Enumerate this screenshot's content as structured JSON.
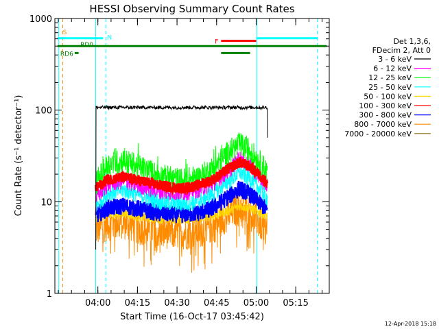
{
  "chart_data": {
    "type": "line",
    "title": "HESSI Observing Summary Count Rates",
    "xlabel": "Start Time (16-Oct-17 03:45:42)",
    "ylabel": "Count Rate (s⁻¹ detector⁻¹)",
    "y_scale": "log",
    "ylim": [
      1,
      1000
    ],
    "x_unit": "minutes after 03:45:42",
    "xlim": [
      -2,
      102
    ],
    "x_tick_labels": [
      "04:00",
      "04:15",
      "04:30",
      "04:45",
      "05:00",
      "05:15"
    ],
    "x_tick_values": [
      14.3,
      29.3,
      44.3,
      59.3,
      74.3,
      89.3
    ],
    "y_tick_labels": [
      "1",
      "10",
      "100",
      "1000"
    ],
    "y_tick_values": [
      1,
      10,
      100,
      1000
    ],
    "legend_header": [
      "Det 1,3,6,",
      "FDecim 2, Att 0"
    ],
    "legend_position": "right",
    "series": [
      {
        "name": "3 - 6 keV",
        "color": "#000000",
        "x": [
          13.5,
          13.6,
          20,
          40,
          60,
          75,
          78.5,
          78.6
        ],
        "y": [
          3,
          108,
          107,
          106,
          108,
          108,
          107,
          50
        ]
      },
      {
        "name": "6 - 12 keV",
        "color": "#ff00ff",
        "x": [
          13.5,
          18,
          24,
          30,
          38,
          46,
          52,
          58,
          64,
          68,
          72,
          76,
          78.5
        ],
        "y": [
          11,
          15.5,
          17,
          15,
          13,
          12.5,
          13.5,
          16,
          22,
          30,
          25,
          18,
          15
        ]
      },
      {
        "name": "12 - 25 keV",
        "color": "#00ff00",
        "x": [
          13.5,
          18,
          24,
          30,
          38,
          46,
          52,
          58,
          64,
          68,
          72,
          76,
          78.5
        ],
        "y": [
          16,
          25,
          28,
          24,
          19,
          17,
          18,
          23,
          35,
          42,
          36,
          26,
          21
        ]
      },
      {
        "name": "25 - 50 keV",
        "color": "#00ffff",
        "x": [
          13.5,
          18,
          24,
          30,
          38,
          46,
          52,
          58,
          64,
          68,
          72,
          76,
          78.5
        ],
        "y": [
          9,
          12.5,
          13.5,
          12,
          10,
          9.5,
          10,
          12.5,
          17,
          21,
          18,
          13.5,
          11
        ]
      },
      {
        "name": "50 - 100 keV",
        "color": "#ffd700",
        "x": [
          13.5,
          18,
          24,
          30,
          38,
          46,
          52,
          58,
          64,
          68,
          72,
          76,
          78.5
        ],
        "y": [
          6.5,
          7,
          7.5,
          6.8,
          6.5,
          6.4,
          6.5,
          7,
          8,
          9,
          8.5,
          7.5,
          7
        ]
      },
      {
        "name": "100 - 300 keV",
        "color": "#ff0000",
        "x": [
          13.5,
          18,
          24,
          30,
          38,
          46,
          52,
          58,
          64,
          68,
          72,
          76,
          78.5
        ],
        "y": [
          14,
          17.5,
          18.5,
          17,
          15,
          14,
          15,
          17.5,
          23,
          27,
          24,
          19,
          16
        ]
      },
      {
        "name": "300 - 800 keV",
        "color": "#0000ff",
        "x": [
          13.5,
          18,
          24,
          30,
          38,
          46,
          52,
          58,
          64,
          68,
          72,
          76,
          78.5
        ],
        "y": [
          7,
          8.5,
          9,
          8.3,
          7.5,
          7.2,
          7.5,
          8.5,
          11.5,
          14,
          12,
          9.5,
          8
        ]
      },
      {
        "name": "800 - 7000 keV",
        "color": "#ff8c00",
        "x": [
          13.5,
          18,
          24,
          30,
          38,
          46,
          52,
          58,
          64,
          68,
          72,
          76,
          78.5
        ],
        "y": [
          5,
          5.8,
          6,
          5.3,
          4.8,
          4.6,
          4.8,
          5.5,
          7.5,
          9,
          7.5,
          5.8,
          5
        ]
      },
      {
        "name": "7000 - 20000 keV",
        "color": "#8b6b10",
        "x": [],
        "y": []
      }
    ],
    "annotations": [
      {
        "label": "S",
        "color": "#ff8c00",
        "x_start": 0.5,
        "x_end": 0.5,
        "y": 710
      },
      {
        "label": "N",
        "color": "#00ffff",
        "x_start": -1,
        "x_end": 16.3,
        "y": 610
      },
      {
        "label": "F",
        "color": "#ff0000",
        "x_start": 61,
        "x_end": 74.3,
        "y": 570
      },
      {
        "label": "",
        "color": "#00ffff",
        "x_start": 74.5,
        "x_end": 97.5,
        "y": 610
      },
      {
        "label": "",
        "color": "#008000",
        "x_start": -1,
        "x_end": 101,
        "y": 500
      },
      {
        "label": "RD6",
        "color": "#008000",
        "x_start": 5.5,
        "x_end": 7,
        "y": 420
      },
      {
        "label": "RD0",
        "color": "#008000",
        "x_start": 6.5,
        "x_end": 6.6,
        "y": 500
      },
      {
        "label": "",
        "color": "#008000",
        "x_start": 61,
        "x_end": 72,
        "y": 420
      }
    ],
    "vlines": [
      {
        "x": -0.5,
        "color": "#00ffff",
        "dash": false
      },
      {
        "x": 1.0,
        "color": "#ff8c00",
        "dash": true
      },
      {
        "x": 13.5,
        "color": "#00ffff",
        "dash": false
      },
      {
        "x": 17.3,
        "color": "#00ffff",
        "dash": true
      },
      {
        "x": 74.5,
        "color": "#00ffff",
        "dash": false
      },
      {
        "x": 97.5,
        "color": "#00ffff",
        "dash": true
      }
    ]
  },
  "timestamp": "12-Apr-2018 15:18"
}
